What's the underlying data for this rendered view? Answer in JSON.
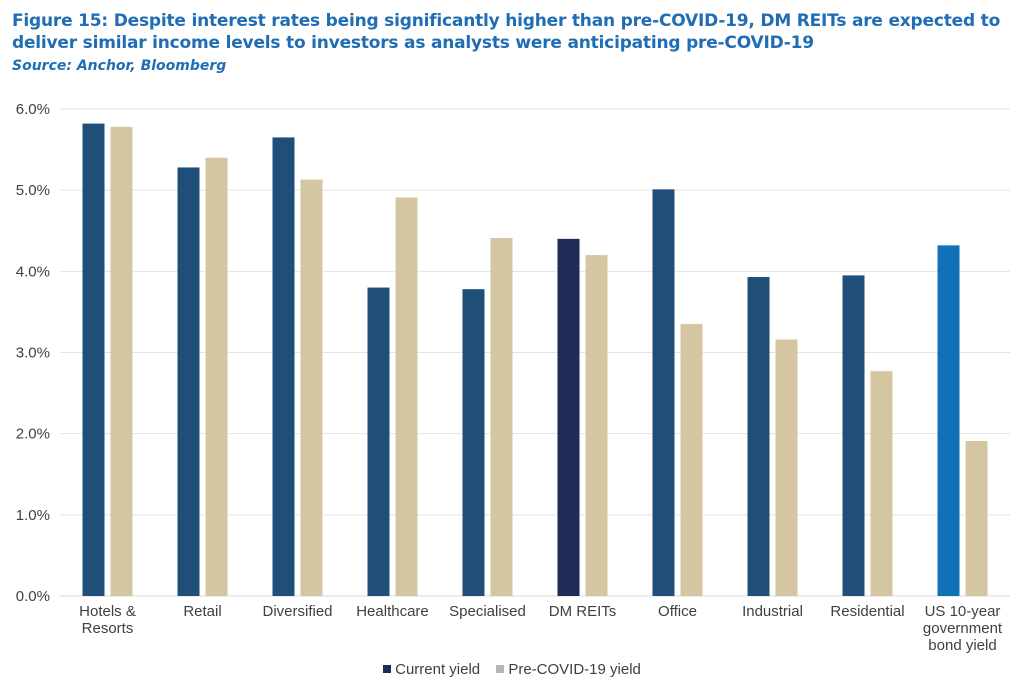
{
  "title": "Figure 15: Despite interest rates being significantly higher than pre-COVID-19, DM REITs are expected to deliver similar income levels to investors as analysts were anticipating pre-COVID-19",
  "source": "Source: Anchor, Bloomberg",
  "chart_data": {
    "type": "bar",
    "categories": [
      [
        "Hotels &",
        "Resorts"
      ],
      [
        "Retail"
      ],
      [
        "Diversified"
      ],
      [
        "Healthcare"
      ],
      [
        "Specialised"
      ],
      [
        "DM REITs"
      ],
      [
        "Office"
      ],
      [
        "Industrial"
      ],
      [
        "Residential"
      ],
      [
        "US 10-year",
        "government",
        "bond yield"
      ]
    ],
    "series": [
      {
        "name": "Current yield",
        "color": "#1f4e79",
        "values": [
          5.82,
          5.28,
          5.65,
          3.8,
          3.78,
          4.4,
          5.01,
          3.93,
          3.95,
          4.32
        ],
        "point_colors": [
          "#1f4e79",
          "#1f4e79",
          "#1f4e79",
          "#1f4e79",
          "#1f4e79",
          "#1f2a55",
          "#1f4e79",
          "#1f4e79",
          "#1f4e79",
          "#0f72b6"
        ]
      },
      {
        "name": "Pre-COVID-19 yield",
        "color": "#d3c6a0",
        "values": [
          5.78,
          5.4,
          5.13,
          4.91,
          4.41,
          4.2,
          3.35,
          3.16,
          2.77,
          1.91
        ]
      }
    ],
    "yticks": [
      "0.0%",
      "1.0%",
      "2.0%",
      "3.0%",
      "4.0%",
      "5.0%",
      "6.0%"
    ],
    "ylim": [
      0,
      6
    ],
    "grid": true,
    "legend": {
      "position": "bottom",
      "entries": [
        "Current yield",
        "Pre-COVID-19 yield"
      ],
      "colors": [
        "#1f2a55",
        "#b9b6b0"
      ]
    }
  }
}
